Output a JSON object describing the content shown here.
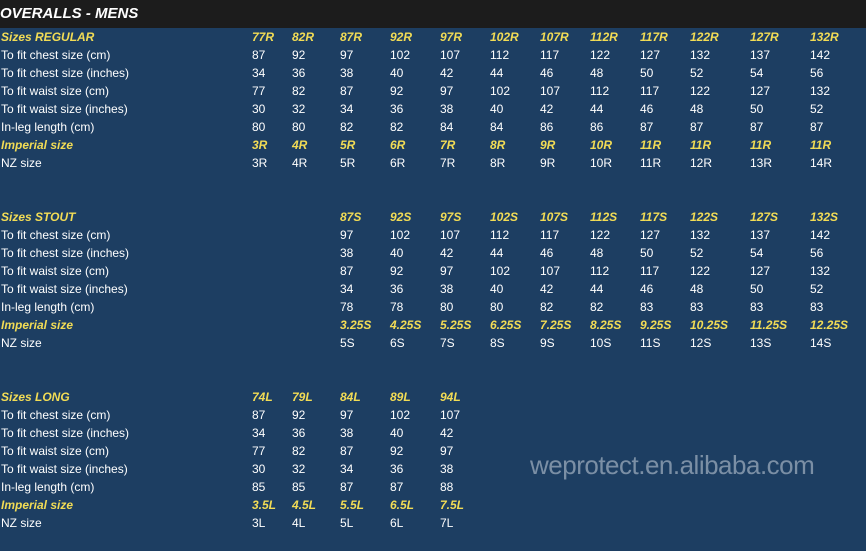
{
  "title": "OVERALLS - MENS",
  "watermark": "weprotect.en.alibaba.com",
  "colors": {
    "header_bg": "#1c1c1c",
    "body_bg": "#1d3e62",
    "highlight": "#f2dc55",
    "text": "#ffffff"
  },
  "sections": [
    {
      "name": "regular",
      "start_col": 0,
      "rows": [
        {
          "label": "Sizes REGULAR",
          "style": "highlight",
          "values": [
            "77R",
            "82R",
            "87R",
            "92R",
            "97R",
            "102R",
            "107R",
            "112R",
            "117R",
            "122R",
            "127R",
            "132R"
          ]
        },
        {
          "label": "To fit chest size (cm)",
          "values": [
            "87",
            "92",
            "97",
            "102",
            "107",
            "112",
            "117",
            "122",
            "127",
            "132",
            "137",
            "142"
          ]
        },
        {
          "label": "To fit chest size (inches)",
          "values": [
            "34",
            "36",
            "38",
            "40",
            "42",
            "44",
            "46",
            "48",
            "50",
            "52",
            "54",
            "56"
          ]
        },
        {
          "label": "To fit waist size (cm)",
          "values": [
            "77",
            "82",
            "87",
            "92",
            "97",
            "102",
            "107",
            "112",
            "117",
            "122",
            "127",
            "132"
          ]
        },
        {
          "label": "To fit waist size (inches)",
          "values": [
            "30",
            "32",
            "34",
            "36",
            "38",
            "40",
            "42",
            "44",
            "46",
            "48",
            "50",
            "52"
          ]
        },
        {
          "label": "In-leg length (cm)",
          "values": [
            "80",
            "80",
            "82",
            "82",
            "84",
            "84",
            "86",
            "86",
            "87",
            "87",
            "87",
            "87"
          ]
        },
        {
          "label": "Imperial size",
          "style": "highlight",
          "values": [
            "3R",
            "4R",
            "5R",
            "6R",
            "7R",
            "8R",
            "9R",
            "10R",
            "11R",
            "11R",
            "11R",
            "11R"
          ]
        },
        {
          "label": "NZ size",
          "values": [
            "3R",
            "4R",
            "5R",
            "6R",
            "7R",
            "8R",
            "9R",
            "10R",
            "11R",
            "12R",
            "13R",
            "14R"
          ]
        }
      ]
    },
    {
      "name": "stout",
      "start_col": 2,
      "rows": [
        {
          "label": "Sizes STOUT",
          "style": "highlight",
          "values": [
            "87S",
            "92S",
            "97S",
            "102S",
            "107S",
            "112S",
            "117S",
            "122S",
            "127S",
            "132S"
          ]
        },
        {
          "label": "To fit chest size (cm)",
          "values": [
            "97",
            "102",
            "107",
            "112",
            "117",
            "122",
            "127",
            "132",
            "137",
            "142"
          ]
        },
        {
          "label": "To fit chest size (inches)",
          "values": [
            "38",
            "40",
            "42",
            "44",
            "46",
            "48",
            "50",
            "52",
            "54",
            "56"
          ]
        },
        {
          "label": "To fit waist size (cm)",
          "values": [
            "87",
            "92",
            "97",
            "102",
            "107",
            "112",
            "117",
            "122",
            "127",
            "132"
          ]
        },
        {
          "label": "To fit waist size (inches)",
          "values": [
            "34",
            "36",
            "38",
            "40",
            "42",
            "44",
            "46",
            "48",
            "50",
            "52"
          ]
        },
        {
          "label": "In-leg length (cm)",
          "values": [
            "78",
            "78",
            "80",
            "80",
            "82",
            "82",
            "83",
            "83",
            "83",
            "83"
          ]
        },
        {
          "label": "Imperial size",
          "style": "highlight",
          "values": [
            "3.25S",
            "4.25S",
            "5.25S",
            "6.25S",
            "7.25S",
            "8.25S",
            "9.25S",
            "10.25S",
            "11.25S",
            "12.25S"
          ]
        },
        {
          "label": "NZ size",
          "values": [
            "5S",
            "6S",
            "7S",
            "8S",
            "9S",
            "10S",
            "11S",
            "12S",
            "13S",
            "14S"
          ]
        }
      ]
    },
    {
      "name": "long",
      "start_col": 0,
      "rows": [
        {
          "label": "Sizes LONG",
          "style": "highlight",
          "values": [
            "74L",
            "79L",
            "84L",
            "89L",
            "94L"
          ]
        },
        {
          "label": "To fit chest size (cm)",
          "values": [
            "87",
            "92",
            "97",
            "102",
            "107"
          ]
        },
        {
          "label": "To fit chest size (inches)",
          "values": [
            "34",
            "36",
            "38",
            "40",
            "42"
          ]
        },
        {
          "label": "To fit waist size (cm)",
          "values": [
            "77",
            "82",
            "87",
            "92",
            "97"
          ]
        },
        {
          "label": "To fit waist size (inches)",
          "values": [
            "30",
            "32",
            "34",
            "36",
            "38"
          ]
        },
        {
          "label": "In-leg length (cm)",
          "values": [
            "85",
            "85",
            "87",
            "87",
            "88"
          ]
        },
        {
          "label": "Imperial size",
          "style": "highlight",
          "values": [
            "3.5L",
            "4.5L",
            "5.5L",
            "6.5L",
            "7.5L"
          ]
        },
        {
          "label": "NZ size",
          "values": [
            "3L",
            "4L",
            "5L",
            "6L",
            "7L"
          ]
        }
      ]
    }
  ]
}
